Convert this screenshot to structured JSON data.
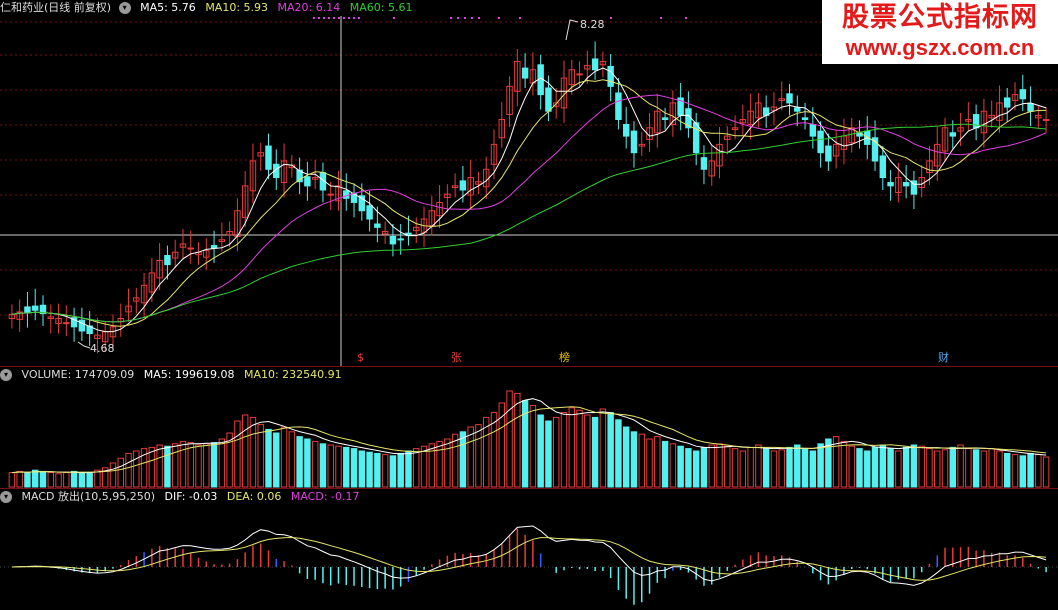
{
  "colors": {
    "up": "#e83b3b",
    "down": "#54f0f0",
    "ma5": "#ffffff",
    "ma10": "#e6e66a",
    "ma20": "#e040e0",
    "ma60": "#30d030",
    "grid": "#7a1010",
    "bg": "#000000"
  },
  "price_header": {
    "stock_name": "仁和药业(日线 前复权)",
    "ma5": "MA5: 5.76",
    "ma10": "MA10: 5.93",
    "ma20": "MA20: 6.14",
    "ma60": "MA60: 5.61"
  },
  "price_annotations": {
    "high_label": "8.28",
    "low_label": "4.68"
  },
  "event_tags": [
    {
      "text": "$",
      "color": "#e83b3b"
    },
    {
      "text": "张",
      "color": "#e83b3b"
    },
    {
      "text": "榜",
      "color": "#e6c200"
    },
    {
      "text": "财",
      "color": "#54a8f0"
    }
  ],
  "volume_header": {
    "label": "VOLUME: 174709.09",
    "ma5": "MA5: 199619.08",
    "ma10": "MA10: 232540.91"
  },
  "macd_header": {
    "label": "MACD 放出(10,5,95,250)",
    "dif": "DIF: -0.03",
    "dea": "DEA: 0.06",
    "macd": "MACD: -0.17"
  },
  "watermark": {
    "title": "股票公式指标网",
    "url": "www.gszx.com.cn"
  },
  "chart_data": {
    "type": "candlestick",
    "closes": [
      4.95,
      4.98,
      4.97,
      5.0,
      4.96,
      4.92,
      4.9,
      4.85,
      4.8,
      4.75,
      4.72,
      4.7,
      4.74,
      4.8,
      4.9,
      5.05,
      5.15,
      5.3,
      5.45,
      5.6,
      5.55,
      5.7,
      5.8,
      5.75,
      5.7,
      5.72,
      5.75,
      5.85,
      5.95,
      6.2,
      6.5,
      6.8,
      6.9,
      6.7,
      6.6,
      6.8,
      6.75,
      6.55,
      6.5,
      6.6,
      6.45,
      6.4,
      6.5,
      6.35,
      6.3,
      6.2,
      6.1,
      6.0,
      5.95,
      5.8,
      5.85,
      5.9,
      6.0,
      6.1,
      6.2,
      6.3,
      6.4,
      6.5,
      6.45,
      6.6,
      6.55,
      6.7,
      7.0,
      7.3,
      7.7,
      8.0,
      7.8,
      7.9,
      7.6,
      7.4,
      7.5,
      7.8,
      7.9,
      7.85,
      7.95,
      7.9,
      8.0,
      7.7,
      7.3,
      7.1,
      6.9,
      7.0,
      7.2,
      7.4,
      7.3,
      7.5,
      7.35,
      7.2,
      6.9,
      6.7,
      6.8,
      7.0,
      7.1,
      7.2,
      7.3,
      7.4,
      7.5,
      7.35,
      7.45,
      7.55,
      7.5,
      7.4,
      7.3,
      7.1,
      6.9,
      6.8,
      7.0,
      7.1,
      7.2,
      7.1,
      7.0,
      6.8,
      6.6,
      6.5,
      6.6,
      6.5,
      6.4,
      6.6,
      6.8,
      7.0,
      7.2,
      7.1,
      7.2,
      7.3,
      7.2,
      7.4,
      7.35,
      7.5,
      7.45,
      7.6,
      7.55,
      7.4,
      7.35,
      7.3
    ],
    "volumes": [
      12,
      13,
      12,
      14,
      13,
      12,
      11,
      12,
      13,
      12,
      12,
      14,
      16,
      20,
      24,
      28,
      30,
      32,
      33,
      35,
      34,
      36,
      38,
      37,
      35,
      36,
      37,
      40,
      45,
      55,
      60,
      58,
      52,
      48,
      45,
      50,
      46,
      42,
      40,
      38,
      36,
      35,
      34,
      33,
      32,
      30,
      29,
      28,
      27,
      26,
      28,
      30,
      32,
      34,
      36,
      38,
      40,
      44,
      46,
      50,
      52,
      58,
      62,
      70,
      80,
      78,
      72,
      68,
      60,
      55,
      58,
      62,
      66,
      64,
      60,
      58,
      65,
      62,
      56,
      50,
      46,
      44,
      40,
      42,
      38,
      36,
      34,
      32,
      30,
      33,
      35,
      36,
      34,
      32,
      30,
      33,
      35,
      32,
      30,
      31,
      33,
      35,
      32,
      30,
      36,
      40,
      42,
      38,
      34,
      32,
      30,
      33,
      35,
      32,
      30,
      33,
      35,
      34,
      32,
      30,
      31,
      33,
      35,
      32,
      31,
      30,
      32,
      30,
      28,
      27,
      26,
      28,
      27,
      25
    ]
  }
}
